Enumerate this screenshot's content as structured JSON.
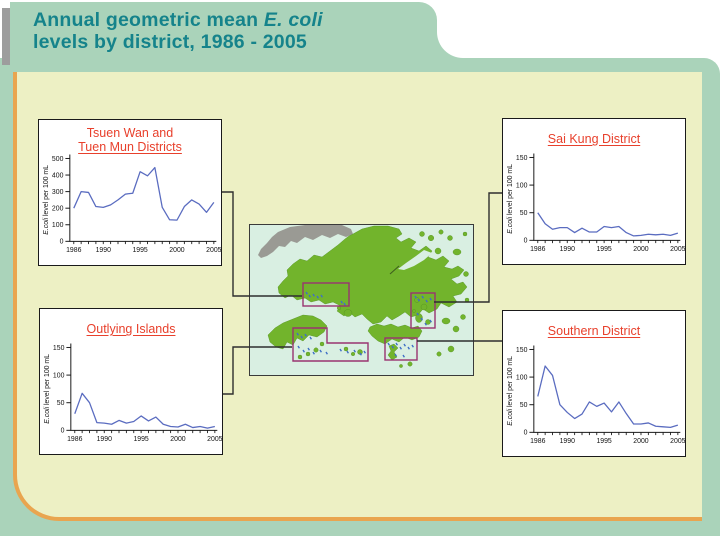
{
  "page_title": {
    "line1_prefix": "Annual geometric mean ",
    "line1_italic": "E. coli",
    "line2": "levels by district, 1986 - 2005"
  },
  "map": {
    "region": "Hong Kong districts map",
    "district_boxes": [
      "Tsuen Wan and Tuen Mun",
      "Outlying Islands",
      "Southern",
      "Sai Kung"
    ]
  },
  "colors": {
    "banner_green": "#aad3ba",
    "content_yellow": "#edf0c4",
    "orange_border": "#e9a54f",
    "title_teal": "#15838b",
    "chart_title_red": "#e8402c",
    "line_blue": "#5a6cc0",
    "map_land_green": "#72b42c",
    "map_sea": "#d9efe2",
    "mainland_gray": "#9a9a94",
    "district_box_purple": "#993370",
    "beach_marker_blue": "#3f6fc6"
  },
  "chart_data": [
    {
      "type": "line",
      "title": "Tsuen Wan and Tuen Mun Districts",
      "title_lines": [
        "Tsuen Wan and",
        "Tuen Mun Districts"
      ],
      "ylabel_italic": "E.coli",
      "ylabel_rest": " level per 100 mL",
      "ylim": [
        0,
        500
      ],
      "yticks": [
        0,
        100,
        200,
        300,
        400,
        500
      ],
      "x": [
        1986,
        1987,
        1988,
        1989,
        1990,
        1991,
        1992,
        1993,
        1994,
        1995,
        1996,
        1997,
        1998,
        1999,
        2000,
        2001,
        2002,
        2003,
        2004,
        2005
      ],
      "xtick_labels": [
        1986,
        1990,
        1995,
        2000,
        2005
      ],
      "values": [
        200,
        300,
        295,
        210,
        205,
        220,
        250,
        285,
        290,
        420,
        395,
        445,
        205,
        130,
        128,
        210,
        250,
        225,
        175,
        235
      ],
      "line_color": "#5a6cc0"
    },
    {
      "type": "line",
      "title": "Sai Kung District",
      "title_lines": [
        "Sai Kung District"
      ],
      "ylabel_italic": "E.coli",
      "ylabel_rest": " level per 100 mL",
      "ylim": [
        0,
        150
      ],
      "yticks": [
        0,
        50,
        100,
        150
      ],
      "x": [
        1986,
        1987,
        1988,
        1989,
        1990,
        1991,
        1992,
        1993,
        1994,
        1995,
        1996,
        1997,
        1998,
        1999,
        2000,
        2001,
        2002,
        2003,
        2004,
        2005
      ],
      "xtick_labels": [
        1986,
        1990,
        1995,
        2000,
        2005
      ],
      "values": [
        50,
        30,
        20,
        23,
        23,
        14,
        22,
        15,
        15,
        25,
        23,
        25,
        14,
        8,
        9,
        11,
        10,
        11,
        9,
        13
      ],
      "line_color": "#5a6cc0"
    },
    {
      "type": "line",
      "title": "Outlying Islands",
      "title_lines": [
        "Outlying Islands"
      ],
      "ylabel_italic": "E.coli",
      "ylabel_rest": " level per 100 mL",
      "ylim": [
        0,
        150
      ],
      "yticks": [
        0,
        50,
        100,
        150
      ],
      "x": [
        1986,
        1987,
        1988,
        1989,
        1990,
        1991,
        1992,
        1993,
        1994,
        1995,
        1996,
        1997,
        1998,
        1999,
        2000,
        2001,
        2002,
        2003,
        2004,
        2005
      ],
      "xtick_labels": [
        1986,
        1990,
        1995,
        2000,
        2005
      ],
      "values": [
        30,
        67,
        50,
        14,
        13,
        11,
        18,
        13,
        16,
        26,
        17,
        24,
        11,
        7,
        6,
        11,
        5,
        7,
        4,
        7
      ],
      "line_color": "#5a6cc0"
    },
    {
      "type": "line",
      "title": "Southern District",
      "title_lines": [
        "Southern District"
      ],
      "ylabel_italic": "E.coli",
      "ylabel_rest": " level per 100 mL",
      "ylim": [
        0,
        150
      ],
      "yticks": [
        0,
        50,
        100,
        150
      ],
      "x": [
        1986,
        1987,
        1988,
        1989,
        1990,
        1991,
        1992,
        1993,
        1994,
        1995,
        1996,
        1997,
        1998,
        1999,
        2000,
        2001,
        2002,
        2003,
        2004,
        2005
      ],
      "xtick_labels": [
        1986,
        1990,
        1995,
        2000,
        2005
      ],
      "values": [
        65,
        120,
        103,
        50,
        36,
        25,
        33,
        55,
        47,
        53,
        37,
        55,
        34,
        15,
        15,
        17,
        11,
        10,
        9,
        13
      ],
      "line_color": "#5a6cc0"
    }
  ]
}
